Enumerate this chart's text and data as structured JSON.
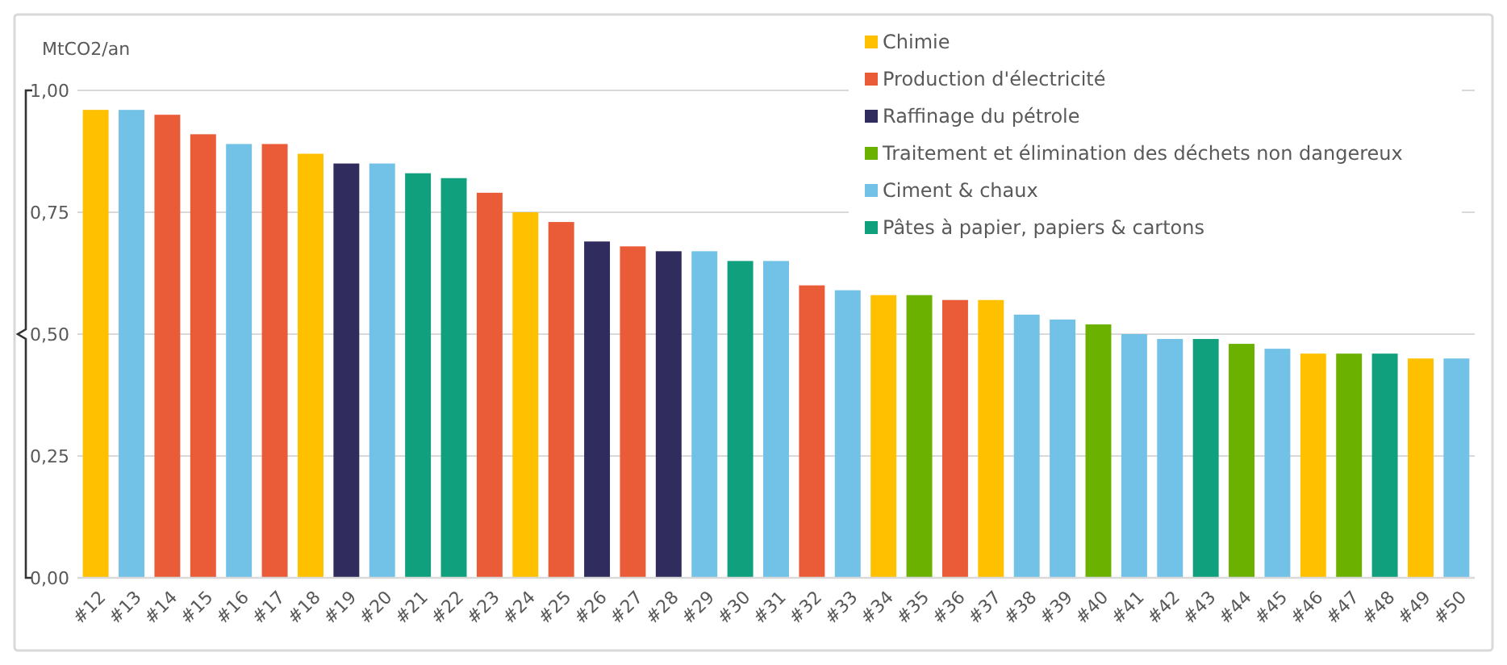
{
  "chart_data": {
    "type": "bar",
    "ylabel": "MtCO2/an",
    "legend": "top right",
    "grid": "y",
    "categories": [
      "#12",
      "#13",
      "#14",
      "#15",
      "#16",
      "#17",
      "#18",
      "#19",
      "#20",
      "#21",
      "#22",
      "#23",
      "#24",
      "#25",
      "#26",
      "#27",
      "#28",
      "#29",
      "#30",
      "#31",
      "#32",
      "#33",
      "#34",
      "#35",
      "#36",
      "#37",
      "#38",
      "#39",
      "#40",
      "#41",
      "#42",
      "#43",
      "#44",
      "#45",
      "#46",
      "#47",
      "#48",
      "#49",
      "#50"
    ],
    "ylim": [
      0,
      1
    ],
    "yticks": [
      {
        "value": 0,
        "label": "0,00"
      },
      {
        "value": 0.25,
        "label": "0,25"
      },
      {
        "value": 0.5,
        "label": "0,50"
      },
      {
        "value": 0.75,
        "label": "0,75"
      },
      {
        "value": 1,
        "label": "1,00"
      }
    ],
    "series": [
      {
        "name": "Chimie",
        "color": "#ffc000",
        "values": [
          0.96,
          null,
          null,
          null,
          null,
          null,
          0.87,
          null,
          null,
          null,
          null,
          null,
          0.75,
          null,
          null,
          null,
          null,
          null,
          null,
          null,
          null,
          null,
          0.58,
          null,
          null,
          0.57,
          null,
          null,
          null,
          null,
          null,
          null,
          null,
          null,
          0.46,
          null,
          null,
          0.45,
          null
        ]
      },
      {
        "name": "Production d'électricité",
        "color": "#e95c37",
        "values": [
          null,
          null,
          0.95,
          0.91,
          null,
          0.89,
          null,
          null,
          null,
          null,
          null,
          0.79,
          null,
          0.73,
          null,
          0.68,
          null,
          null,
          null,
          null,
          0.6,
          null,
          null,
          null,
          0.57,
          null,
          null,
          null,
          null,
          null,
          null,
          null,
          null,
          null,
          null,
          null,
          null,
          null,
          null
        ]
      },
      {
        "name": "Raffinage du pétrole",
        "color": "#302d5e",
        "values": [
          null,
          null,
          null,
          null,
          null,
          null,
          null,
          0.85,
          null,
          null,
          null,
          null,
          null,
          null,
          0.69,
          null,
          0.67,
          null,
          null,
          null,
          null,
          null,
          null,
          null,
          null,
          null,
          null,
          null,
          null,
          null,
          null,
          null,
          null,
          null,
          null,
          null,
          null,
          null,
          null
        ]
      },
      {
        "name": "Traitement et élimination des déchets non dangereux",
        "color": "#6ab100",
        "values": [
          null,
          null,
          null,
          null,
          null,
          null,
          null,
          null,
          null,
          null,
          null,
          null,
          null,
          null,
          null,
          null,
          null,
          null,
          null,
          null,
          null,
          null,
          null,
          0.58,
          null,
          null,
          null,
          null,
          0.52,
          null,
          null,
          null,
          0.48,
          null,
          null,
          0.46,
          null,
          null,
          null
        ]
      },
      {
        "name": "Ciment & chaux",
        "color": "#72c2e8",
        "values": [
          null,
          0.96,
          null,
          null,
          0.89,
          null,
          null,
          null,
          0.85,
          null,
          null,
          null,
          null,
          null,
          null,
          null,
          null,
          0.67,
          null,
          0.65,
          null,
          0.59,
          null,
          null,
          null,
          null,
          0.54,
          0.53,
          null,
          0.5,
          0.49,
          null,
          null,
          0.47,
          null,
          null,
          null,
          null,
          0.45
        ]
      },
      {
        "name": "Pâtes à papier, papiers & cartons",
        "color": "#11a07e",
        "values": [
          null,
          null,
          null,
          null,
          null,
          null,
          null,
          null,
          null,
          0.83,
          0.82,
          null,
          null,
          null,
          null,
          null,
          null,
          null,
          0.65,
          null,
          null,
          null,
          null,
          null,
          null,
          null,
          null,
          null,
          null,
          null,
          null,
          0.49,
          null,
          null,
          null,
          null,
          0.46,
          null,
          null
        ]
      }
    ]
  }
}
